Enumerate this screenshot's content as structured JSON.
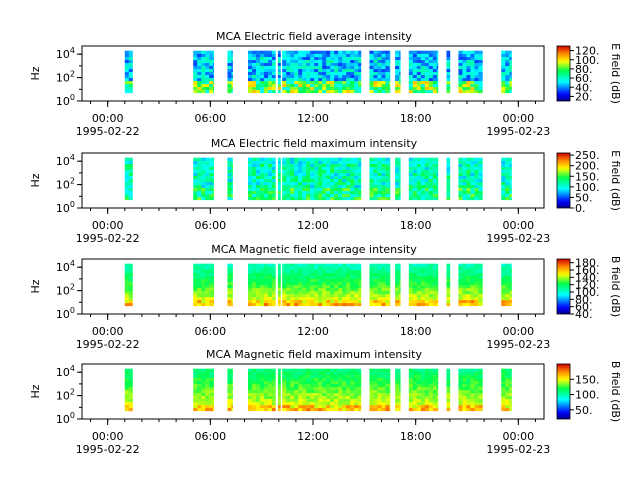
{
  "chart_data": [
    {
      "type": "heatmap",
      "title": "MCA  Electric field average intensity",
      "ylabel": "Hz",
      "yscale": "log",
      "ylim_exp": [
        0,
        4.7
      ],
      "y_ticks": [
        {
          "exp": 0,
          "base": "10",
          "sup": "0"
        },
        {
          "exp": 2,
          "base": "10",
          "sup": "2"
        },
        {
          "exp": 4,
          "base": "10",
          "sup": "4"
        }
      ],
      "xlim_hours": [
        -1.5,
        25.5
      ],
      "x_ticks": [
        {
          "label": "00:00",
          "date": "1995-02-22"
        },
        {
          "label": "06:00",
          "date": ""
        },
        {
          "label": "12:00",
          "date": ""
        },
        {
          "label": "18:00",
          "date": ""
        },
        {
          "label": "00:00",
          "date": "1995-02-23"
        }
      ],
      "x_tick_hours": [
        0,
        6,
        12,
        18,
        24
      ],
      "colorbar": {
        "label": "E field (dB)",
        "range": [
          10,
          130
        ],
        "ticks": [
          "20.",
          "40.",
          "60.",
          "80.",
          "100.",
          "120."
        ],
        "tick_values": [
          20,
          40,
          60,
          80,
          100,
          120
        ]
      },
      "data_segments_hours": [
        [
          1.0,
          1.45
        ],
        [
          5.0,
          6.2
        ],
        [
          7.0,
          7.3
        ],
        [
          8.2,
          9.8
        ],
        [
          9.95,
          10.1
        ],
        [
          10.2,
          14.8
        ],
        [
          15.3,
          16.5
        ],
        [
          16.8,
          17.1
        ],
        [
          17.6,
          19.3
        ],
        [
          19.8,
          20.0
        ],
        [
          20.5,
          21.9
        ],
        [
          23.0,
          23.6
        ]
      ],
      "level": {
        "base": 48,
        "hot": 82
      }
    },
    {
      "type": "heatmap",
      "title": "MCA  Electric field maximum intensity",
      "ylabel": "Hz",
      "yscale": "log",
      "ylim_exp": [
        0,
        4.7
      ],
      "y_ticks": [
        {
          "exp": 0,
          "base": "10",
          "sup": "0"
        },
        {
          "exp": 2,
          "base": "10",
          "sup": "2"
        },
        {
          "exp": 4,
          "base": "10",
          "sup": "4"
        }
      ],
      "xlim_hours": [
        -1.5,
        25.5
      ],
      "x_ticks": [
        {
          "label": "00:00",
          "date": "1995-02-22"
        },
        {
          "label": "06:00",
          "date": ""
        },
        {
          "label": "12:00",
          "date": ""
        },
        {
          "label": "18:00",
          "date": ""
        },
        {
          "label": "00:00",
          "date": "1995-02-23"
        }
      ],
      "x_tick_hours": [
        0,
        6,
        12,
        18,
        24
      ],
      "colorbar": {
        "label": "E field (dB)",
        "range": [
          0,
          260
        ],
        "ticks": [
          "0.",
          "50.",
          "100.",
          "150.",
          "200.",
          "250."
        ],
        "tick_values": [
          0,
          50,
          100,
          150,
          200,
          250
        ]
      },
      "data_segments_hours": [
        [
          1.0,
          1.45
        ],
        [
          5.0,
          6.2
        ],
        [
          7.0,
          7.3
        ],
        [
          8.2,
          9.8
        ],
        [
          9.95,
          10.1
        ],
        [
          10.2,
          14.8
        ],
        [
          15.3,
          16.5
        ],
        [
          16.8,
          17.1
        ],
        [
          17.6,
          19.3
        ],
        [
          19.8,
          20.0
        ],
        [
          20.5,
          21.9
        ],
        [
          23.0,
          23.6
        ]
      ],
      "level": {
        "base": 112,
        "hot": 130
      }
    },
    {
      "type": "heatmap",
      "title": "MCA  Magnetic field average intensity",
      "ylabel": "Hz",
      "yscale": "log",
      "ylim_exp": [
        0,
        4.7
      ],
      "y_ticks": [
        {
          "exp": 0,
          "base": "10",
          "sup": "0"
        },
        {
          "exp": 2,
          "base": "10",
          "sup": "2"
        },
        {
          "exp": 4,
          "base": "10",
          "sup": "4"
        }
      ],
      "xlim_hours": [
        -1.5,
        25.5
      ],
      "x_ticks": [
        {
          "label": "00:00",
          "date": "1995-02-22"
        },
        {
          "label": "06:00",
          "date": ""
        },
        {
          "label": "12:00",
          "date": ""
        },
        {
          "label": "18:00",
          "date": ""
        },
        {
          "label": "00:00",
          "date": "1995-02-23"
        }
      ],
      "x_tick_hours": [
        0,
        6,
        12,
        18,
        24
      ],
      "colorbar": {
        "label": "B field (dB)",
        "range": [
          40,
          190
        ],
        "ticks": [
          "40.",
          "60.",
          "80.",
          "100.",
          "120.",
          "140.",
          "160.",
          "180."
        ],
        "tick_values": [
          40,
          60,
          80,
          100,
          120,
          140,
          160,
          180
        ]
      },
      "data_segments_hours": [
        [
          1.0,
          1.45
        ],
        [
          5.0,
          6.2
        ],
        [
          7.0,
          7.3
        ],
        [
          8.2,
          9.8
        ],
        [
          9.95,
          10.1
        ],
        [
          10.2,
          14.8
        ],
        [
          15.3,
          16.5
        ],
        [
          16.8,
          17.1
        ],
        [
          17.6,
          19.3
        ],
        [
          19.8,
          20.0
        ],
        [
          20.5,
          21.9
        ],
        [
          23.0,
          23.6
        ]
      ],
      "level": {
        "low_freq": 150,
        "high_freq": 105
      }
    },
    {
      "type": "heatmap",
      "title": "MCA  Magnetic field maximum intensity",
      "ylabel": "Hz",
      "yscale": "log",
      "ylim_exp": [
        0,
        4.7
      ],
      "y_ticks": [
        {
          "exp": 0,
          "base": "10",
          "sup": "0"
        },
        {
          "exp": 2,
          "base": "10",
          "sup": "2"
        },
        {
          "exp": 4,
          "base": "10",
          "sup": "4"
        }
      ],
      "xlim_hours": [
        -1.5,
        25.5
      ],
      "x_ticks": [
        {
          "label": "00:00",
          "date": "1995-02-22"
        },
        {
          "label": "06:00",
          "date": ""
        },
        {
          "label": "12:00",
          "date": ""
        },
        {
          "label": "18:00",
          "date": ""
        },
        {
          "label": "00:00",
          "date": "1995-02-23"
        }
      ],
      "x_tick_hours": [
        0,
        6,
        12,
        18,
        24
      ],
      "colorbar": {
        "label": "B field (dB)",
        "range": [
          20,
          200
        ],
        "ticks": [
          "50.",
          "100.",
          "150."
        ],
        "tick_values": [
          50,
          100,
          150
        ]
      },
      "data_segments_hours": [
        [
          1.0,
          1.45
        ],
        [
          5.0,
          6.2
        ],
        [
          7.0,
          7.3
        ],
        [
          8.2,
          9.8
        ],
        [
          9.95,
          10.1
        ],
        [
          10.2,
          14.8
        ],
        [
          15.3,
          16.5
        ],
        [
          16.8,
          17.1
        ],
        [
          17.6,
          19.3
        ],
        [
          19.8,
          20.0
        ],
        [
          20.5,
          21.9
        ],
        [
          23.0,
          23.6
        ]
      ],
      "level": {
        "low_freq": 150,
        "high_freq": 110
      }
    }
  ]
}
